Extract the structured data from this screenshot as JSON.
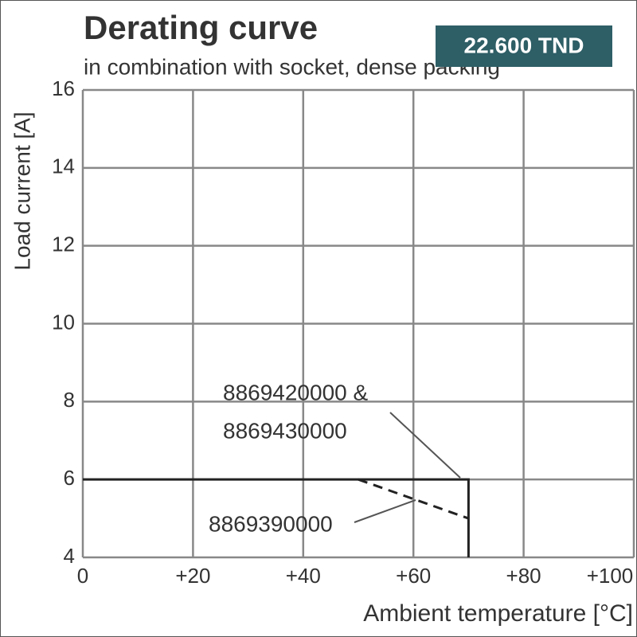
{
  "badge": "22.600 TND",
  "chart_data": {
    "type": "line",
    "title": "Derating curve",
    "subtitle": "in combination with socket, dense packing",
    "xlabel": "Ambient temperature [°C]",
    "ylabel": "Load current [A]",
    "xlim": [
      0,
      100
    ],
    "ylim": [
      4,
      16
    ],
    "xticks": [
      0,
      {
        "value": 20,
        "label": "+20"
      },
      {
        "value": 40,
        "label": "+40"
      },
      {
        "value": 60,
        "label": "+60"
      },
      {
        "value": 80,
        "label": "+80"
      },
      {
        "value": 100,
        "label": "+100"
      }
    ],
    "yticks": [
      4,
      6,
      8,
      10,
      12,
      14,
      16
    ],
    "grid": true,
    "series": [
      {
        "color": "#222222",
        "dash": false,
        "x": [
          0,
          70,
          70
        ],
        "values": [
          6,
          6,
          4
        ]
      },
      {
        "color": "#222222",
        "dash": true,
        "x": [
          50,
          70
        ],
        "values": [
          6,
          5
        ]
      }
    ],
    "annotations": [
      {
        "lines": [
          "8869420000 &",
          "8869430000"
        ],
        "series": 0
      },
      {
        "lines": [
          "8869390000"
        ],
        "series": 1
      }
    ]
  }
}
